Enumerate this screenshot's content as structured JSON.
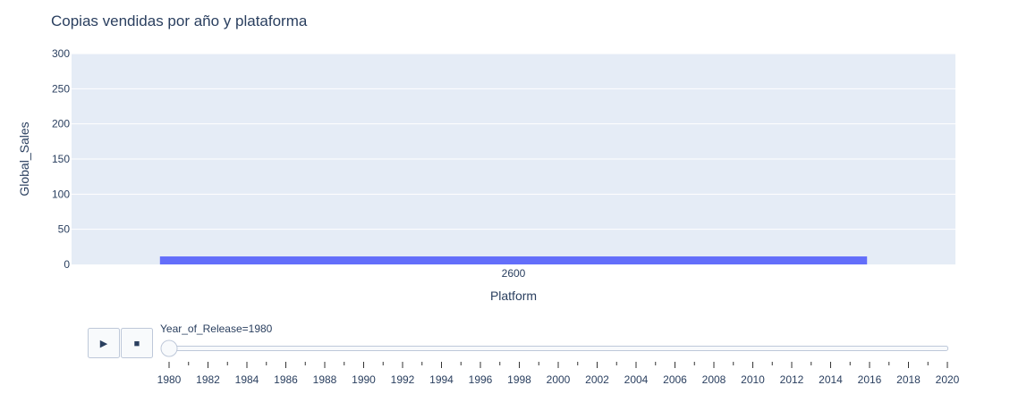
{
  "chart_data": {
    "type": "bar",
    "title": "Copias vendidas por año y plataforma",
    "xlabel": "Platform",
    "ylabel": "Global_Sales",
    "categories": [
      "2600"
    ],
    "values": [
      11.38
    ],
    "ylim": [
      0,
      300
    ],
    "yticks": [
      0,
      50,
      100,
      150,
      200,
      250,
      300
    ],
    "grid": true,
    "bar_color": "#636efa",
    "plot_bg": "#e5ecf6"
  },
  "animation": {
    "play_icon": "play-icon",
    "stop_icon": "stop-icon",
    "play_symbol": "▶",
    "stop_symbol": "■",
    "current_prefix": "Year_of_Release=",
    "current_value": "1980",
    "slider_steps": [
      1980,
      1981,
      1982,
      1983,
      1984,
      1985,
      1986,
      1987,
      1988,
      1989,
      1990,
      1991,
      1992,
      1993,
      1994,
      1995,
      1996,
      1997,
      1998,
      1999,
      2000,
      2001,
      2002,
      2003,
      2004,
      2005,
      2006,
      2007,
      2008,
      2009,
      2010,
      2011,
      2012,
      2013,
      2014,
      2015,
      2016,
      2017,
      2018,
      2019,
      2020
    ],
    "slider_labels": [
      "1980",
      "1982",
      "1984",
      "1986",
      "1988",
      "1990",
      "1992",
      "1994",
      "1996",
      "1998",
      "2000",
      "2002",
      "2004",
      "2006",
      "2008",
      "2010",
      "2012",
      "2014",
      "2016",
      "2018",
      "2020"
    ],
    "slider_position_index": 0
  }
}
